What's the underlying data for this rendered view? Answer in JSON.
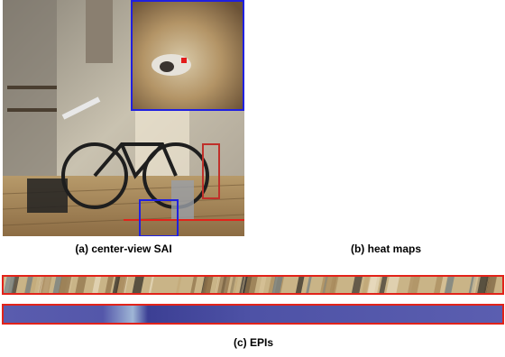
{
  "captions": {
    "a": "(a) center-view SAI",
    "b": "(b) heat maps",
    "c": "(c) EPIs"
  }
}
